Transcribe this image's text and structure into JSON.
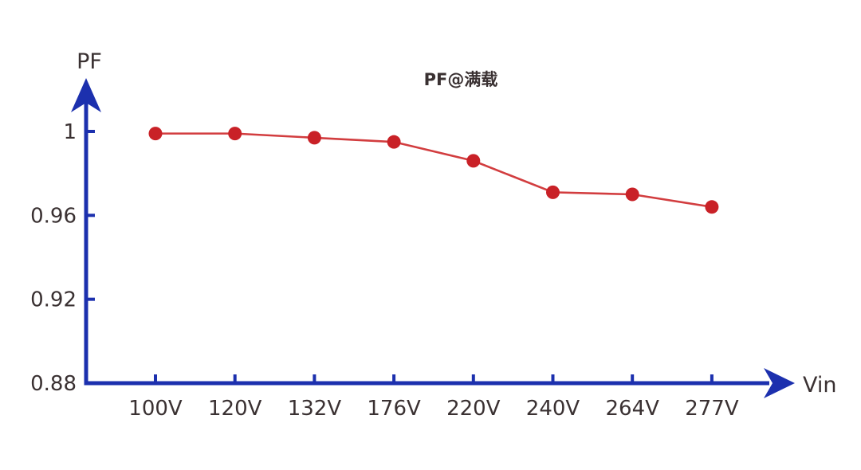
{
  "page": {
    "background": "#ffffff"
  },
  "chart_data": {
    "type": "line",
    "title": "PF@满载",
    "ylabel": "PF",
    "xlabel": "Vin",
    "categories": [
      "100V",
      "120V",
      "132V",
      "176V",
      "220V",
      "240V",
      "264V",
      "277V"
    ],
    "series": [
      {
        "name": "PF",
        "values": [
          0.999,
          0.999,
          0.997,
          0.995,
          0.986,
          0.971,
          0.97,
          0.964
        ]
      }
    ],
    "ylim": [
      0.88,
      1.0
    ],
    "yticks": [
      1,
      0.96,
      0.92,
      0.88
    ],
    "ytick_labels": [
      "1",
      "0.96",
      "0.92",
      "0.88"
    ],
    "grid": false,
    "legend_position": "none",
    "colors": {
      "axis": "#1c30ae",
      "line": "#d23d3f",
      "marker": "#c92127",
      "text": "#3a3132"
    }
  }
}
